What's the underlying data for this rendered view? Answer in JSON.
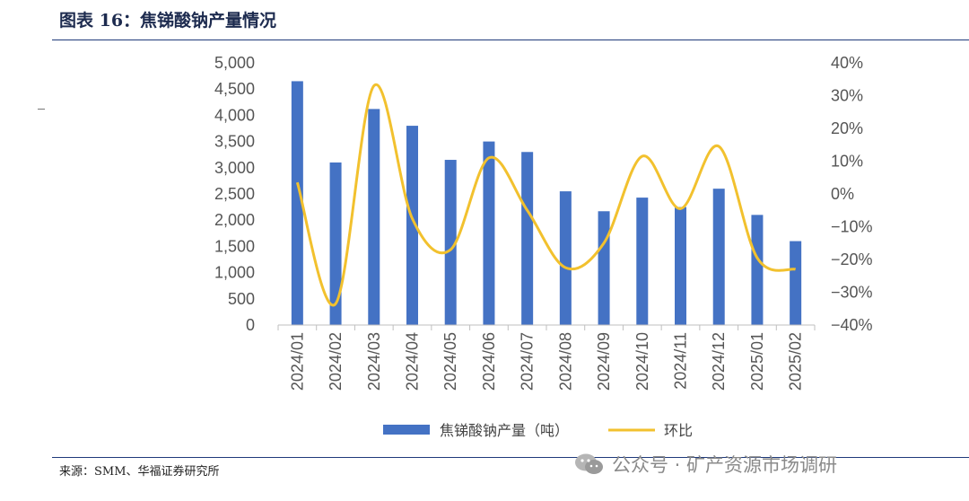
{
  "header": {
    "title": "图表 16：焦锑酸钠产量情况"
  },
  "footer": {
    "source": "来源：SMM、华福证券研究所"
  },
  "watermark": {
    "text": "公众号 · 矿产资源市场调研",
    "icon": "wechat-icon"
  },
  "colors": {
    "bar": "#4472C4",
    "line": "#F2C12E",
    "rule": "#1f3a7a"
  },
  "chart_data": {
    "type": "bar",
    "categories": [
      "2024/01",
      "2024/02",
      "2024/03",
      "2024/04",
      "2024/05",
      "2024/06",
      "2024/07",
      "2024/08",
      "2024/09",
      "2024/10",
      "2024/11",
      "2024/12",
      "2025/01",
      "2025/02"
    ],
    "series": [
      {
        "name": "焦锑酸钠产量（吨）",
        "type": "bar",
        "axis": "left",
        "values": [
          4650,
          3100,
          4120,
          3800,
          3150,
          3500,
          3300,
          2550,
          2170,
          2430,
          2250,
          2600,
          2100,
          1600
        ]
      },
      {
        "name": "环比",
        "type": "line",
        "axis": "right",
        "values": [
          3.5,
          -33.5,
          33.0,
          -7.5,
          -17.0,
          11.0,
          -5.0,
          -22.5,
          -15.0,
          11.5,
          -4.5,
          14.5,
          -19.5,
          -23.0
        ]
      }
    ],
    "y_left": {
      "min": 0,
      "max": 5000,
      "step": 500,
      "tick_labels": [
        "0",
        "500",
        "1,000",
        "1,500",
        "2,000",
        "2,500",
        "3,000",
        "3,500",
        "4,000",
        "4,500",
        "5,000"
      ]
    },
    "y_right": {
      "min": -40,
      "max": 40,
      "step": 10,
      "tick_labels": [
        "-40%",
        "-30%",
        "-20%",
        "-10%",
        "0%",
        "10%",
        "20%",
        "30%",
        "40%"
      ]
    },
    "legend_position": "bottom",
    "grid": false
  }
}
